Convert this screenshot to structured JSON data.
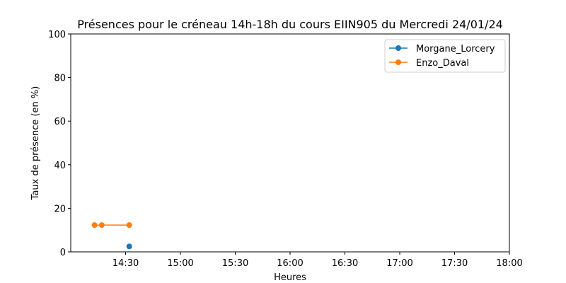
{
  "chart_data": {
    "type": "line",
    "title": "Présences pour le créneau 14h-18h du cours EIIN905 du Mercredi 24/01/24",
    "xlabel": "Heures",
    "ylabel": "Taux de présence (en %)",
    "x_ticks": [
      "14:30",
      "15:00",
      "15:30",
      "16:00",
      "16:30",
      "17:00",
      "17:30",
      "18:00"
    ],
    "x_tick_minutes": [
      870,
      900,
      930,
      960,
      990,
      1020,
      1050,
      1080
    ],
    "xlim_minutes": [
      840,
      1080
    ],
    "ylim": [
      0,
      100
    ],
    "y_ticks": [
      0,
      20,
      40,
      60,
      80,
      100
    ],
    "grid": false,
    "legend_position": "top-right",
    "series": [
      {
        "name": "Morgane_Lorcery",
        "color": "#1f77b4",
        "x_minutes": [
          872
        ],
        "values": [
          2.5
        ]
      },
      {
        "name": "Enzo_Daval",
        "color": "#ff7f0e",
        "x_minutes": [
          853,
          857,
          872
        ],
        "values": [
          12.3,
          12.3,
          12.3
        ]
      }
    ]
  }
}
